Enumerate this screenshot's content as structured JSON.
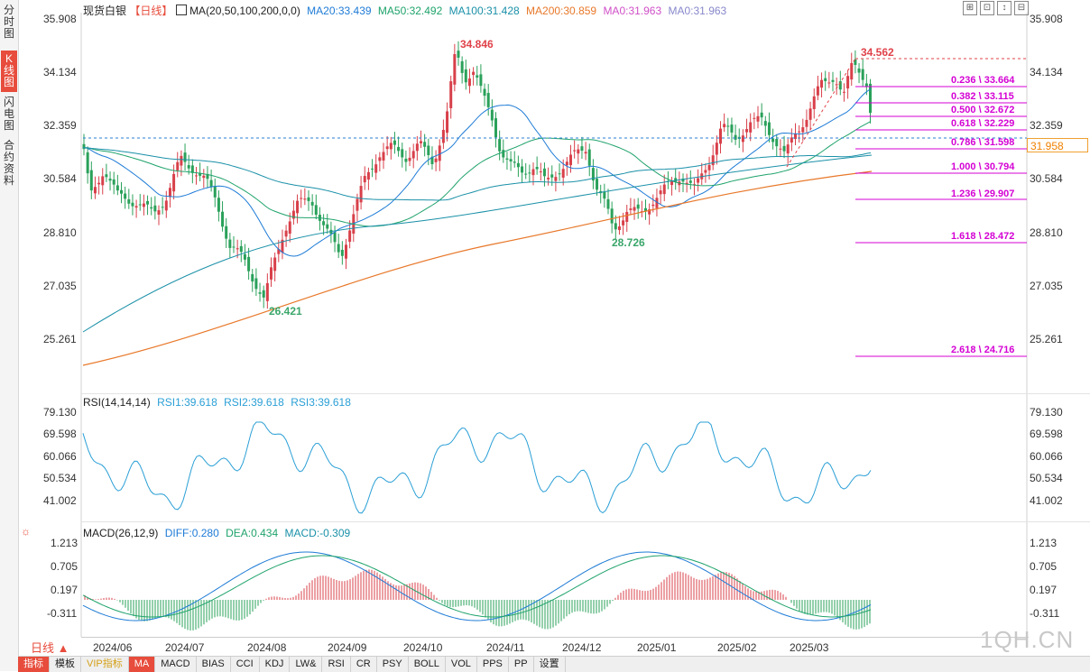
{
  "sidebar": {
    "tabs": [
      "分时图",
      "K线图",
      "闪电图",
      "合约资料"
    ],
    "active_index": 1
  },
  "header": {
    "instrument": "现货白银",
    "period_tag": "【日线】",
    "ma_label": "MA(20,50,100,200,0,0)",
    "ma_values": [
      {
        "text": "MA20:33.439",
        "color": "#1e7bd6"
      },
      {
        "text": "MA50:32.492",
        "color": "#1fa36b"
      },
      {
        "text": "MA100:31.428",
        "color": "#1a90a8"
      },
      {
        "text": "MA200:30.859",
        "color": "#e8782a"
      },
      {
        "text": "MA0:31.963",
        "color": "#d04fc8"
      },
      {
        "text": "MA0:31.963",
        "color": "#8888cc"
      }
    ]
  },
  "top_icons": [
    "⊞",
    "⊡",
    "↕",
    "⊟"
  ],
  "main_axis": {
    "labels": [
      "35.908",
      "34.134",
      "32.359",
      "30.584",
      "28.810",
      "27.035",
      "25.261"
    ]
  },
  "annotations": {
    "high1": "34.846",
    "high2": "34.562",
    "low1": "26.421",
    "low2": "28.726",
    "current_price": "31.958"
  },
  "fibonacci": [
    {
      "label": "0.236 \\ 33.664"
    },
    {
      "label": "0.382 \\ 33.115"
    },
    {
      "label": "0.500 \\ 32.672"
    },
    {
      "label": "0.618 \\ 32.229"
    },
    {
      "label": "0.786 \\ 31.598"
    },
    {
      "label": "1.000 \\ 30.794"
    },
    {
      "label": "1.236 \\ 29.907"
    },
    {
      "label": "1.618 \\ 28.472"
    },
    {
      "label": "2.618 \\ 24.716"
    }
  ],
  "rsi": {
    "label": "RSI(14,14,14)",
    "values": [
      "RSI1:39.618",
      "RSI2:39.618",
      "RSI3:39.618"
    ],
    "axis": [
      "79.130",
      "69.598",
      "60.066",
      "50.534",
      "41.002"
    ]
  },
  "macd": {
    "label": "MACD(26,12,9)",
    "values": [
      {
        "text": "DIFF:0.280",
        "color": "#1e7bd6"
      },
      {
        "text": "DEA:0.434",
        "color": "#1fa36b"
      },
      {
        "text": "MACD:-0.309",
        "color": "#1a90a8"
      }
    ],
    "axis": [
      "1.213",
      "0.705",
      "0.197",
      "-0.311"
    ]
  },
  "x_axis": {
    "labels": [
      "2024/06",
      "2024/07",
      "2024/08",
      "2024/09",
      "2024/10",
      "2024/11",
      "2024/12",
      "2025/01",
      "2025/02",
      "2025/03"
    ]
  },
  "period_button": "日线 ▲",
  "bottom_tabs": [
    "指标",
    "模板",
    "VIP指标",
    "MA",
    "MACD",
    "BIAS",
    "CCI",
    "KDJ",
    "LW&",
    "RSI",
    "CR",
    "PSY",
    "BOLL",
    "VOL",
    "PPS",
    "PP",
    "设置"
  ],
  "watermark": "1QH.CN"
}
